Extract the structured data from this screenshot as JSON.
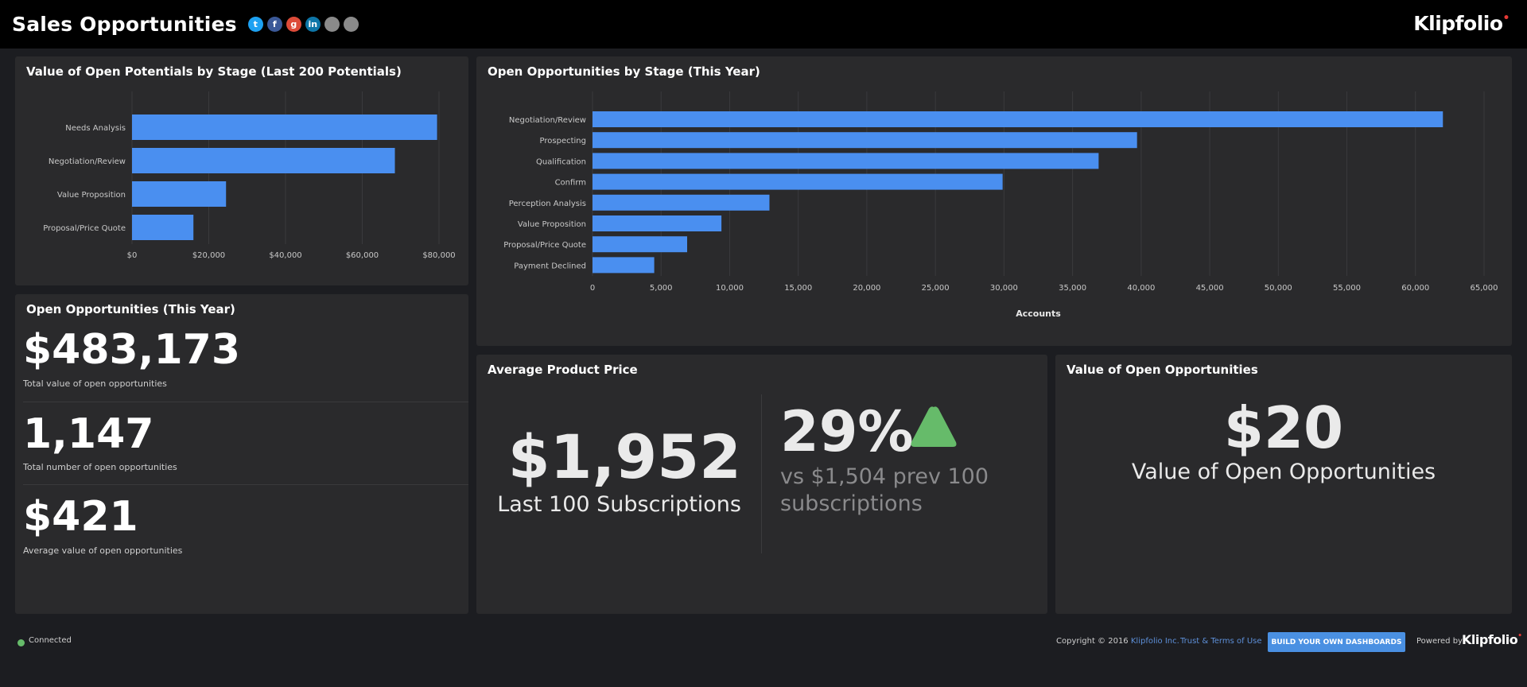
{
  "header": {
    "title": "Sales Opportunities",
    "socials": [
      {
        "icon": "twitter-icon",
        "glyph": "t",
        "color": "#1da1f2"
      },
      {
        "icon": "facebook-icon",
        "glyph": "f",
        "color": "#3b5998"
      },
      {
        "icon": "google-plus-icon",
        "glyph": "g",
        "color": "#dd4b39"
      },
      {
        "icon": "linkedin-icon",
        "glyph": "in",
        "color": "#0e76a8"
      },
      {
        "icon": "link-icon",
        "glyph": "",
        "color": "#8a8a8a"
      },
      {
        "icon": "email-icon",
        "glyph": "",
        "color": "#8a8a8a"
      }
    ],
    "brand": "Klipfolio",
    "brand_dot": "•"
  },
  "potentials_panel": {
    "title": "Value of Open Potentials by Stage (Last 200 Potentials)"
  },
  "opportunities_panel": {
    "title": "Open Opportunities by Stage (This Year)"
  },
  "chart_data": [
    {
      "type": "bar",
      "orientation": "horizontal",
      "title": "Value of Open Potentials by Stage (Last 200 Potentials)",
      "categories": [
        "Needs Analysis",
        "Negotiation/Review",
        "Value Proposition",
        "Proposal/Price Quote"
      ],
      "values": [
        79500,
        68500,
        24500,
        16000
      ],
      "xlim": [
        0,
        80000
      ],
      "xticks": [
        "$0",
        "$20,000",
        "$40,000",
        "$60,000",
        "$80,000"
      ],
      "grid": true,
      "bar_color": "#4a8ff0"
    },
    {
      "type": "bar",
      "orientation": "horizontal",
      "title": "Open Opportunities by Stage (This Year)",
      "categories": [
        "Negotiation/Review",
        "Prospecting",
        "Qualification",
        "Confirm",
        "Perception Analysis",
        "Value Proposition",
        "Proposal/Price Quote",
        "Payment Declined"
      ],
      "values": [
        62000,
        39700,
        36900,
        29900,
        12900,
        9400,
        6900,
        4500
      ],
      "xlim": [
        0,
        65000
      ],
      "xticks": [
        "0",
        "5,000",
        "10,000",
        "15,000",
        "20,000",
        "25,000",
        "30,000",
        "35,000",
        "40,000",
        "45,000",
        "50,000",
        "55,000",
        "60,000",
        "65,000"
      ],
      "xlabel": "Accounts",
      "grid": true,
      "bar_color": "#4a8ff0"
    }
  ],
  "open_opps": {
    "title": "Open Opportunities (This Year)",
    "metrics": [
      {
        "value": "$483,173",
        "label": "Total value of open opportunities"
      },
      {
        "value": "1,147",
        "label": "Total number of open opportunities"
      },
      {
        "value": "$421",
        "label": "Average value of open opportunities"
      }
    ]
  },
  "avg_price": {
    "title": "Average Product Price",
    "value": "$1,952",
    "label": "Last 100 Subscriptions",
    "change": "29%",
    "change_icon": "triangle-up-icon",
    "change_color": "#66bb6a",
    "compare_line1": "vs $1,504 prev 100",
    "compare_line2": "subscriptions"
  },
  "value_open": {
    "title": "Value of Open Opportunities",
    "value": "$20",
    "label": "Value of Open Opportunities"
  },
  "footer": {
    "status": "Connected",
    "copyright_prefix": "Copyright © 2016 ",
    "copyright_link": "Klipfolio Inc.",
    "terms": "Trust & Terms of Use",
    "build_button": "BUILD YOUR OWN DASHBOARDS",
    "powered_by": "Powered by",
    "logo": "Klipfolio",
    "logo_dot": "•"
  }
}
